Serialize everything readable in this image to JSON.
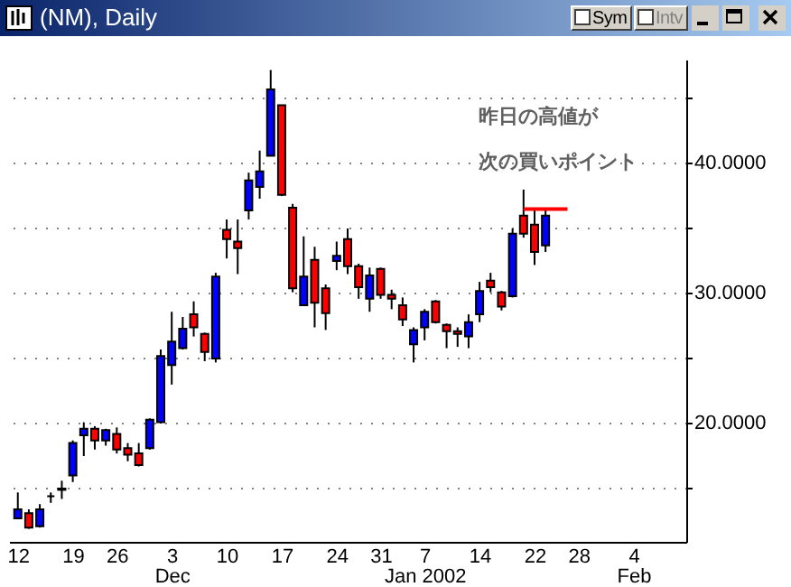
{
  "chart_data": {
    "type": "candlestick",
    "title": "(NM), Daily",
    "categories": [
      "12",
      null,
      null,
      null,
      null,
      "19",
      null,
      null,
      null,
      "26",
      null,
      null,
      null,
      null,
      "3\nDec",
      null,
      null,
      null,
      null,
      "10",
      null,
      null,
      null,
      null,
      "17",
      null,
      null,
      null,
      null,
      "24",
      null,
      null,
      null,
      "31",
      null,
      null,
      null,
      "7\nJan 2002",
      null,
      null,
      null,
      null,
      "14",
      null,
      null,
      null,
      null,
      "22",
      null,
      null,
      null,
      "28",
      null,
      null,
      null,
      null,
      "4\nFeb",
      null,
      null,
      null,
      null
    ],
    "ohlc": [
      [
        12.6,
        14.6,
        12.6,
        13.3
      ],
      [
        13.0,
        13.3,
        11.8,
        11.9
      ],
      [
        12.0,
        13.7,
        11.9,
        13.3
      ],
      [
        14.3,
        14.6,
        13.8,
        14.3
      ],
      [
        14.8,
        15.5,
        14.1,
        14.9
      ],
      [
        15.9,
        18.6,
        15.4,
        18.4
      ],
      [
        19.0,
        20.0,
        17.4,
        19.5
      ],
      [
        19.5,
        19.7,
        17.9,
        18.6
      ],
      [
        18.6,
        19.5,
        18.2,
        19.4
      ],
      [
        19.1,
        19.6,
        17.6,
        17.9
      ],
      [
        18.0,
        18.4,
        17.0,
        17.5
      ],
      [
        17.6,
        18.4,
        16.6,
        16.7
      ],
      [
        18.0,
        20.3,
        17.9,
        20.2
      ],
      [
        20.0,
        25.6,
        19.9,
        25.1
      ],
      [
        24.4,
        28.5,
        22.9,
        26.2
      ],
      [
        25.7,
        28.1,
        25.6,
        27.2
      ],
      [
        28.3,
        29.3,
        26.6,
        27.3
      ],
      [
        26.8,
        26.9,
        24.7,
        25.4
      ],
      [
        24.9,
        31.5,
        24.6,
        31.2
      ],
      [
        34.8,
        35.6,
        32.6,
        34.1
      ],
      [
        33.9,
        35.6,
        31.4,
        33.4
      ],
      [
        36.3,
        39.2,
        35.6,
        38.6
      ],
      [
        38.1,
        40.9,
        37.2,
        39.3
      ],
      [
        40.5,
        47.1,
        40.5,
        45.6
      ],
      [
        44.4,
        44.4,
        37.4,
        37.5
      ],
      [
        36.5,
        36.8,
        30.0,
        30.3
      ],
      [
        29.0,
        34.3,
        29.0,
        31.2
      ],
      [
        32.5,
        33.5,
        27.3,
        29.2
      ],
      [
        30.3,
        30.6,
        27.1,
        28.4
      ],
      [
        32.4,
        33.9,
        31.7,
        32.8
      ],
      [
        34.1,
        34.9,
        31.4,
        32.0
      ],
      [
        32.0,
        32.2,
        29.5,
        30.4
      ],
      [
        29.5,
        31.9,
        28.5,
        31.3
      ],
      [
        31.8,
        31.9,
        29.5,
        29.8
      ],
      [
        29.8,
        30.2,
        28.7,
        29.5
      ],
      [
        29.0,
        29.6,
        27.4,
        27.9
      ],
      [
        26.0,
        27.3,
        24.6,
        27.1
      ],
      [
        27.3,
        28.7,
        26.3,
        28.5
      ],
      [
        29.3,
        29.4,
        27.6,
        27.7
      ],
      [
        27.5,
        27.6,
        25.7,
        27.0
      ],
      [
        27.0,
        27.3,
        25.8,
        26.8
      ],
      [
        26.6,
        28.3,
        25.7,
        27.7
      ],
      [
        28.3,
        30.8,
        27.7,
        30.1
      ],
      [
        30.9,
        31.5,
        30.0,
        30.4
      ],
      [
        30.0,
        30.1,
        28.6,
        28.9
      ],
      [
        29.7,
        34.9,
        29.6,
        34.5
      ],
      [
        35.9,
        37.9,
        34.2,
        34.5
      ],
      [
        35.2,
        36.4,
        32.1,
        33.1
      ],
      [
        33.6,
        36.4,
        33.1,
        35.9
      ],
      null,
      null,
      null,
      null,
      null,
      null,
      null,
      null,
      null,
      null,
      null,
      null
    ],
    "colors": [
      "#0000ff",
      "#ff0000",
      "#0000ff",
      "#000000",
      "#000000",
      "#0000ff",
      "#0000ff",
      "#ff0000",
      "#0000ff",
      "#ff0000",
      "#ff0000",
      "#ff0000",
      "#0000ff",
      "#0000ff",
      "#0000ff",
      "#0000ff",
      "#ff0000",
      "#ff0000",
      "#0000ff",
      "#ff0000",
      "#ff0000",
      "#0000ff",
      "#0000ff",
      "#0000ff",
      "#ff0000",
      "#ff0000",
      "#0000ff",
      "#ff0000",
      "#ff0000",
      "#0000ff",
      "#ff0000",
      "#ff0000",
      "#0000ff",
      "#ff0000",
      "#ff0000",
      "#ff0000",
      "#0000ff",
      "#0000ff",
      "#ff0000",
      "#ff0000",
      "#ff0000",
      "#0000ff",
      "#0000ff",
      "#ff0000",
      "#ff0000",
      "#0000ff",
      "#ff0000",
      "#ff0000",
      "#0000ff",
      null,
      null,
      null,
      null,
      null,
      null,
      null,
      null,
      null,
      null,
      null,
      null
    ],
    "series": [
      {
        "type": "line",
        "color": "#ff0000",
        "values": [
          null,
          null,
          null,
          null,
          null,
          null,
          null,
          null,
          null,
          null,
          null,
          null,
          null,
          null,
          null,
          null,
          null,
          null,
          null,
          null,
          null,
          null,
          null,
          null,
          null,
          null,
          null,
          null,
          null,
          null,
          null,
          null,
          null,
          null,
          null,
          null,
          null,
          null,
          null,
          null,
          null,
          null,
          null,
          null,
          null,
          null,
          36.4,
          36.4,
          36.4,
          36.4,
          36.4,
          null,
          null,
          null,
          null,
          null,
          null,
          null,
          null,
          null,
          null
        ]
      }
    ],
    "annotations": [
      "昨日の高値が",
      "次の買いポイント",
      "Sym",
      "Intv"
    ],
    "ylim": [
      10.8,
      47.9
    ],
    "yticks": [
      {
        "value": 15,
        "label": null
      },
      {
        "value": 20,
        "label": "20.0000"
      },
      {
        "value": 25,
        "label": null
      },
      {
        "value": 30,
        "label": "30.0000"
      },
      {
        "value": 35,
        "label": null
      },
      {
        "value": 40,
        "label": "40.0000"
      },
      {
        "value": 45,
        "label": null
      }
    ],
    "grid": "y"
  }
}
